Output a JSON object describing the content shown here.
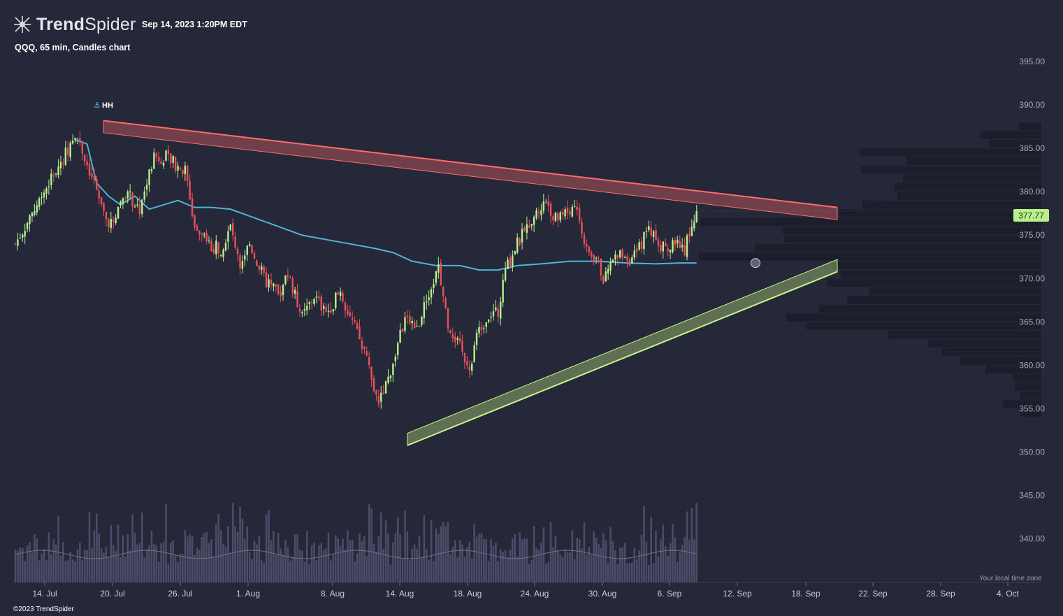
{
  "header": {
    "brand_part1": "Trend",
    "brand_part2": "Spider",
    "timestamp": "Sep 14, 2023 1:20PM EDT",
    "chart_title": "QQQ, 65 min, Candles chart",
    "logo_icon": "trendspider-logo-icon"
  },
  "footer": {
    "copyright": "©2023 TrendSpider",
    "timezone_note": "Your local time zone"
  },
  "colors": {
    "background": "#252838",
    "bull": "#b8f08c",
    "bear": "#ee4f5a",
    "ma_line": "#4fb3d6",
    "resistance": "#ff6b6b",
    "support": "#c8f48a",
    "volume": "#4a4c68",
    "volume_profile": "#1c1e2b",
    "price_tag": "#b8f08c"
  },
  "chart_data": {
    "type": "candlestick",
    "symbol": "QQQ",
    "interval": "65 min",
    "ylim": [
      336.5,
      397.5
    ],
    "y_ticks": [
      "395.00",
      "390.00",
      "385.00",
      "380.00",
      "375.00",
      "370.00",
      "365.00",
      "360.00",
      "355.00",
      "350.00",
      "345.00",
      "340.00"
    ],
    "x_ticks": [
      "14. Jul",
      "20. Jul",
      "26. Jul",
      "1. Aug",
      "8. Aug",
      "14. Aug",
      "18. Aug",
      "24. Aug",
      "30. Aug",
      "6. Sep",
      "12. Sep",
      "18. Sep",
      "22. Sep",
      "28. Sep",
      "4. Oct"
    ],
    "last_price": "377.77",
    "annotation": "HH",
    "anchors": [
      [
        0,
        374
      ],
      [
        8,
        378
      ],
      [
        22,
        385
      ],
      [
        25,
        387
      ],
      [
        29,
        384
      ],
      [
        33,
        381
      ],
      [
        37,
        377
      ],
      [
        40,
        376.5
      ],
      [
        46,
        380
      ],
      [
        52,
        378
      ],
      [
        58,
        384
      ],
      [
        63,
        384
      ],
      [
        68,
        383
      ],
      [
        71,
        382.5
      ],
      [
        75,
        376
      ],
      [
        80,
        374
      ],
      [
        86,
        373.5
      ],
      [
        90,
        376
      ],
      [
        94,
        372
      ],
      [
        98,
        374
      ],
      [
        104,
        370
      ],
      [
        110,
        368
      ],
      [
        114,
        370.5
      ],
      [
        120,
        365.5
      ],
      [
        125,
        368
      ],
      [
        130,
        366
      ],
      [
        136,
        368.5
      ],
      [
        141,
        365
      ],
      [
        147,
        361
      ],
      [
        151,
        356
      ],
      [
        155,
        357.5
      ],
      [
        160,
        362.5
      ],
      [
        164,
        366
      ],
      [
        168,
        364
      ],
      [
        172,
        368
      ],
      [
        177,
        371
      ],
      [
        181,
        365
      ],
      [
        186,
        362
      ],
      [
        190,
        360
      ],
      [
        194,
        364
      ],
      [
        198,
        366
      ],
      [
        202,
        366
      ],
      [
        205,
        371
      ],
      [
        210,
        374
      ],
      [
        214,
        376
      ],
      [
        218,
        377.5
      ],
      [
        222,
        379
      ],
      [
        226,
        377
      ],
      [
        230,
        377.5
      ],
      [
        235,
        378.5
      ],
      [
        239,
        373
      ],
      [
        243,
        372.5
      ],
      [
        246,
        370
      ],
      [
        250,
        372
      ],
      [
        254,
        373
      ],
      [
        258,
        372
      ],
      [
        261,
        373.5
      ],
      [
        265,
        376
      ],
      [
        269,
        374
      ],
      [
        273,
        373
      ],
      [
        277,
        374.5
      ],
      [
        280,
        373.5
      ],
      [
        285,
        377.77
      ]
    ],
    "moving_average": [
      [
        25,
        386
      ],
      [
        30,
        385.5
      ],
      [
        34,
        381
      ],
      [
        39,
        379.5
      ],
      [
        44,
        378.5
      ],
      [
        50,
        379.5
      ],
      [
        56,
        378
      ],
      [
        62,
        378.5
      ],
      [
        68,
        379
      ],
      [
        75,
        378.2
      ],
      [
        82,
        378.2
      ],
      [
        90,
        378
      ],
      [
        100,
        377
      ],
      [
        110,
        376
      ],
      [
        120,
        375
      ],
      [
        130,
        374.5
      ],
      [
        140,
        374
      ],
      [
        150,
        373.5
      ],
      [
        158,
        373
      ],
      [
        166,
        372
      ],
      [
        176,
        371.5
      ],
      [
        186,
        371.5
      ],
      [
        194,
        371
      ],
      [
        202,
        371
      ],
      [
        210,
        371.5
      ],
      [
        220,
        371.7
      ],
      [
        232,
        372
      ],
      [
        244,
        372
      ],
      [
        256,
        371.8
      ],
      [
        268,
        371.7
      ],
      [
        278,
        371.8
      ],
      [
        285,
        371.8
      ]
    ],
    "resistance": {
      "from": [
        148,
        387.5
      ],
      "to": [
        1198,
        377.5
      ],
      "width_price": 1.4
    },
    "support": {
      "from": [
        583,
        351.5
      ],
      "to": [
        1198,
        371.5
      ],
      "width_price": 1.4
    },
    "volume_profile": [
      [
        387.5,
        32
      ],
      [
        386.5,
        88
      ],
      [
        385.5,
        75
      ],
      [
        384.5,
        260
      ],
      [
        383.5,
        193
      ],
      [
        382.5,
        258
      ],
      [
        381.5,
        198
      ],
      [
        380.5,
        210
      ],
      [
        379.5,
        206
      ],
      [
        378.5,
        256
      ],
      [
        377.5,
        290
      ],
      [
        376.5,
        488
      ],
      [
        375.5,
        370
      ],
      [
        374.5,
        368
      ],
      [
        373.5,
        410
      ],
      [
        372.5,
        490
      ],
      [
        371.5,
        300
      ],
      [
        370.5,
        287
      ],
      [
        369.5,
        306
      ],
      [
        368.5,
        246
      ],
      [
        367.5,
        278
      ],
      [
        366.5,
        318
      ],
      [
        365.5,
        365
      ],
      [
        364.5,
        336
      ],
      [
        363.5,
        220
      ],
      [
        362.5,
        162
      ],
      [
        361.5,
        142
      ],
      [
        360.5,
        116
      ],
      [
        359.5,
        80
      ],
      [
        358.5,
        40
      ],
      [
        357.5,
        38
      ],
      [
        356.5,
        30
      ],
      [
        355.5,
        55
      ],
      [
        354.5,
        30
      ]
    ]
  }
}
